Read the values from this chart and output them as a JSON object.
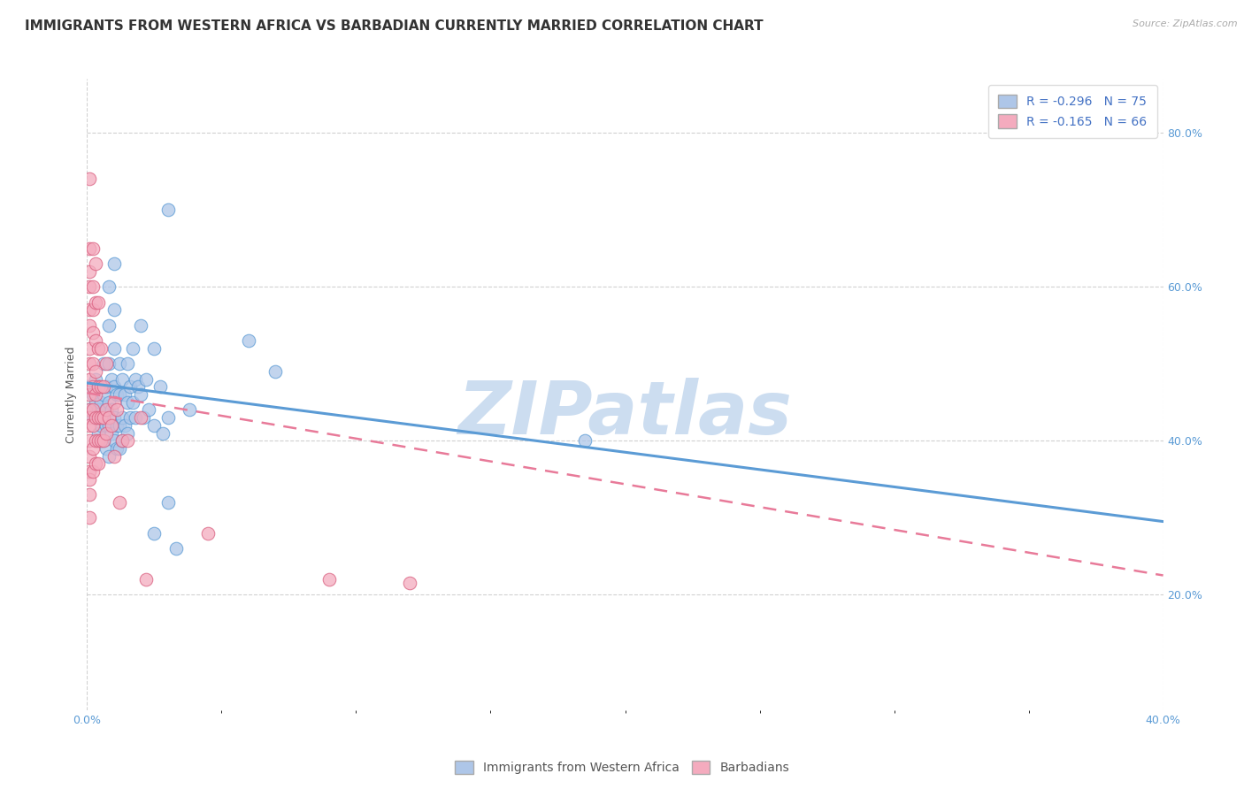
{
  "title": "IMMIGRANTS FROM WESTERN AFRICA VS BARBADIAN CURRENTLY MARRIED CORRELATION CHART",
  "source": "Source: ZipAtlas.com",
  "ylabel": "Currently Married",
  "legend1_label": "R = -0.296   N = 75",
  "legend2_label": "R = -0.165   N = 66",
  "legend_bottom1": "Immigrants from Western Africa",
  "legend_bottom2": "Barbadians",
  "color_blue": "#aec6e8",
  "color_pink": "#f4abbe",
  "line_blue": "#5b9bd5",
  "line_pink": "#e87a99",
  "watermark": "ZIPatlas",
  "blue_scatter": [
    [
      0.001,
      0.47
    ],
    [
      0.002,
      0.46
    ],
    [
      0.001,
      0.44
    ],
    [
      0.002,
      0.43
    ],
    [
      0.003,
      0.48
    ],
    [
      0.003,
      0.45
    ],
    [
      0.003,
      0.43
    ],
    [
      0.004,
      0.47
    ],
    [
      0.004,
      0.44
    ],
    [
      0.004,
      0.41
    ],
    [
      0.005,
      0.45
    ],
    [
      0.005,
      0.42
    ],
    [
      0.005,
      0.4
    ],
    [
      0.006,
      0.5
    ],
    [
      0.006,
      0.46
    ],
    [
      0.006,
      0.43
    ],
    [
      0.006,
      0.4
    ],
    [
      0.007,
      0.47
    ],
    [
      0.007,
      0.44
    ],
    [
      0.007,
      0.42
    ],
    [
      0.007,
      0.39
    ],
    [
      0.008,
      0.6
    ],
    [
      0.008,
      0.55
    ],
    [
      0.008,
      0.5
    ],
    [
      0.008,
      0.45
    ],
    [
      0.008,
      0.42
    ],
    [
      0.008,
      0.38
    ],
    [
      0.009,
      0.48
    ],
    [
      0.009,
      0.44
    ],
    [
      0.009,
      0.41
    ],
    [
      0.01,
      0.63
    ],
    [
      0.01,
      0.57
    ],
    [
      0.01,
      0.52
    ],
    [
      0.01,
      0.47
    ],
    [
      0.01,
      0.43
    ],
    [
      0.01,
      0.4
    ],
    [
      0.011,
      0.46
    ],
    [
      0.011,
      0.42
    ],
    [
      0.011,
      0.39
    ],
    [
      0.012,
      0.5
    ],
    [
      0.012,
      0.46
    ],
    [
      0.012,
      0.42
    ],
    [
      0.012,
      0.39
    ],
    [
      0.013,
      0.48
    ],
    [
      0.013,
      0.43
    ],
    [
      0.013,
      0.4
    ],
    [
      0.014,
      0.46
    ],
    [
      0.014,
      0.42
    ],
    [
      0.015,
      0.5
    ],
    [
      0.015,
      0.45
    ],
    [
      0.015,
      0.41
    ],
    [
      0.016,
      0.47
    ],
    [
      0.016,
      0.43
    ],
    [
      0.017,
      0.52
    ],
    [
      0.017,
      0.45
    ],
    [
      0.018,
      0.48
    ],
    [
      0.018,
      0.43
    ],
    [
      0.019,
      0.47
    ],
    [
      0.02,
      0.55
    ],
    [
      0.02,
      0.46
    ],
    [
      0.021,
      0.43
    ],
    [
      0.022,
      0.48
    ],
    [
      0.023,
      0.44
    ],
    [
      0.025,
      0.52
    ],
    [
      0.025,
      0.42
    ],
    [
      0.025,
      0.28
    ],
    [
      0.027,
      0.47
    ],
    [
      0.028,
      0.41
    ],
    [
      0.03,
      0.7
    ],
    [
      0.03,
      0.43
    ],
    [
      0.03,
      0.32
    ],
    [
      0.033,
      0.26
    ],
    [
      0.038,
      0.44
    ],
    [
      0.185,
      0.4
    ],
    [
      0.06,
      0.53
    ],
    [
      0.07,
      0.49
    ]
  ],
  "pink_scatter": [
    [
      0.001,
      0.74
    ],
    [
      0.001,
      0.65
    ],
    [
      0.001,
      0.62
    ],
    [
      0.001,
      0.6
    ],
    [
      0.001,
      0.57
    ],
    [
      0.001,
      0.55
    ],
    [
      0.001,
      0.52
    ],
    [
      0.001,
      0.5
    ],
    [
      0.001,
      0.48
    ],
    [
      0.001,
      0.46
    ],
    [
      0.001,
      0.44
    ],
    [
      0.001,
      0.43
    ],
    [
      0.001,
      0.42
    ],
    [
      0.001,
      0.4
    ],
    [
      0.001,
      0.38
    ],
    [
      0.001,
      0.36
    ],
    [
      0.001,
      0.35
    ],
    [
      0.001,
      0.33
    ],
    [
      0.001,
      0.3
    ],
    [
      0.002,
      0.65
    ],
    [
      0.002,
      0.6
    ],
    [
      0.002,
      0.57
    ],
    [
      0.002,
      0.54
    ],
    [
      0.002,
      0.5
    ],
    [
      0.002,
      0.47
    ],
    [
      0.002,
      0.44
    ],
    [
      0.002,
      0.42
    ],
    [
      0.002,
      0.39
    ],
    [
      0.002,
      0.36
    ],
    [
      0.003,
      0.63
    ],
    [
      0.003,
      0.58
    ],
    [
      0.003,
      0.53
    ],
    [
      0.003,
      0.49
    ],
    [
      0.003,
      0.46
    ],
    [
      0.003,
      0.43
    ],
    [
      0.003,
      0.4
    ],
    [
      0.003,
      0.37
    ],
    [
      0.004,
      0.58
    ],
    [
      0.004,
      0.52
    ],
    [
      0.004,
      0.47
    ],
    [
      0.004,
      0.43
    ],
    [
      0.004,
      0.4
    ],
    [
      0.004,
      0.37
    ],
    [
      0.005,
      0.52
    ],
    [
      0.005,
      0.47
    ],
    [
      0.005,
      0.43
    ],
    [
      0.005,
      0.4
    ],
    [
      0.006,
      0.47
    ],
    [
      0.006,
      0.43
    ],
    [
      0.006,
      0.4
    ],
    [
      0.007,
      0.5
    ],
    [
      0.007,
      0.44
    ],
    [
      0.007,
      0.41
    ],
    [
      0.008,
      0.43
    ],
    [
      0.009,
      0.42
    ],
    [
      0.01,
      0.45
    ],
    [
      0.01,
      0.38
    ],
    [
      0.011,
      0.44
    ],
    [
      0.012,
      0.32
    ],
    [
      0.013,
      0.4
    ],
    [
      0.015,
      0.4
    ],
    [
      0.02,
      0.43
    ],
    [
      0.022,
      0.22
    ],
    [
      0.045,
      0.28
    ],
    [
      0.09,
      0.22
    ],
    [
      0.12,
      0.215
    ]
  ],
  "blue_line_x": [
    0.0,
    0.4
  ],
  "blue_line_y": [
    0.475,
    0.295
  ],
  "pink_line_x": [
    0.0,
    0.4
  ],
  "pink_line_y": [
    0.462,
    0.225
  ],
  "xlim": [
    0.0,
    0.4
  ],
  "ylim": [
    0.05,
    0.87
  ],
  "x_tick_positions": [
    0.0,
    0.4
  ],
  "x_tick_labels": [
    "0.0%",
    "40.0%"
  ],
  "y_ticks": [
    0.2,
    0.4,
    0.6,
    0.8
  ],
  "y_tick_labels_right": [
    "20.0%",
    "40.0%",
    "60.0%",
    "80.0%"
  ],
  "grid_color": "#cccccc",
  "background_color": "#ffffff",
  "title_fontsize": 11,
  "axis_fontsize": 9,
  "legend_fontsize": 10,
  "watermark_color": "#ccddf0",
  "watermark_fontsize": 60
}
